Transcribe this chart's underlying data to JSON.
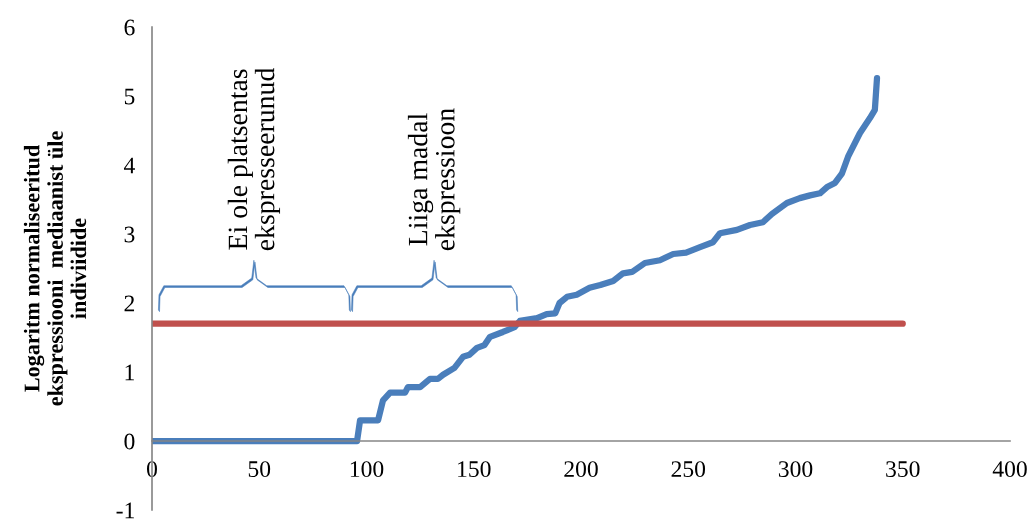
{
  "chart_data": {
    "type": "line",
    "ylabel": "Logaritm normaliseeritud\nekspressiooni  mediaanist üle\nindiviidide",
    "annotations": [
      "Ei ole platsentas\nekspresseerunud",
      "Liiga madal\nekspressioon"
    ],
    "series": [
      {
        "color": "#4a7ebb",
        "x": [
          0,
          95.6,
          97,
          105.4,
          107.7,
          111,
          118,
          119.3,
          125,
          129.6,
          133.3,
          135.7,
          141,
          145,
          148,
          151.5,
          155,
          157.6,
          163.6,
          169,
          171.5,
          179.5,
          184,
          188,
          190,
          193.5,
          198,
          204,
          209,
          215,
          219.6,
          223.8,
          229.8,
          236.8,
          243,
          249,
          255.5,
          261.5,
          264.8,
          272.7,
          278.8,
          284.8,
          289,
          296,
          302,
          306.8,
          311.4,
          314.7,
          318.4,
          321.7,
          324.5,
          330,
          334.7,
          337,
          338
        ],
        "values": [
          0,
          0,
          0.3,
          0.3,
          0.59,
          0.7,
          0.7,
          0.78,
          0.78,
          0.9,
          0.9,
          0.96,
          1.06,
          1.22,
          1.25,
          1.35,
          1.39,
          1.51,
          1.58,
          1.65,
          1.74,
          1.78,
          1.84,
          1.85,
          2.0,
          2.09,
          2.12,
          2.22,
          2.26,
          2.32,
          2.43,
          2.45,
          2.58,
          2.62,
          2.71,
          2.73,
          2.81,
          2.88,
          3.01,
          3.06,
          3.13,
          3.17,
          3.29,
          3.45,
          3.52,
          3.56,
          3.59,
          3.68,
          3.74,
          3.88,
          4.12,
          4.46,
          4.68,
          4.8,
          5.26
        ]
      },
      {
        "color": "#c0504d",
        "x": [
          0,
          350
        ],
        "values": [
          1.7,
          1.7
        ]
      }
    ],
    "xlim": [
      0,
      400
    ],
    "xticks": [
      0,
      50,
      100,
      150,
      200,
      250,
      300,
      350,
      400
    ],
    "ylim": [
      -1,
      6
    ],
    "yticks": [
      -1,
      0,
      1,
      2,
      3,
      4,
      5,
      6
    ],
    "grid": false,
    "legend": false,
    "marker": "none",
    "line_style": "solid"
  }
}
